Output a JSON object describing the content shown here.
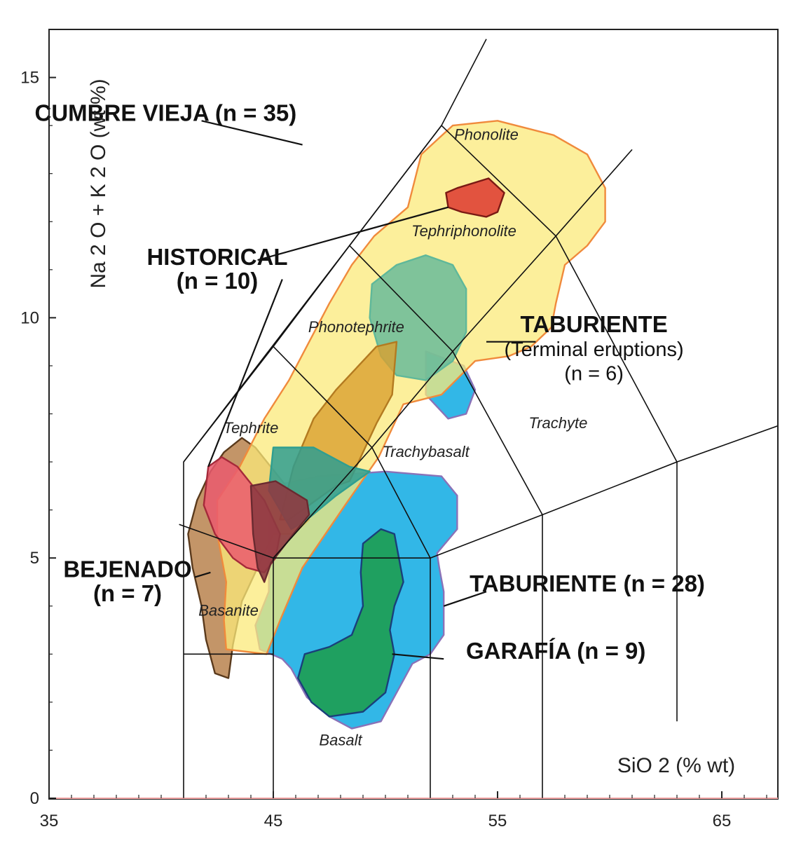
{
  "chart_data": {
    "type": "scatter",
    "subtype": "TAS classification diagram with compositional fields",
    "xlabel": "SiO 2  (% wt)",
    "ylabel": "Na 2 O + K 2 O  (wt %)",
    "xlim": [
      35,
      67.5
    ],
    "ylim": [
      0,
      16
    ],
    "x_ticks": [
      35,
      45,
      55,
      65
    ],
    "y_ticks": [
      0,
      5,
      10,
      15
    ],
    "grid": false,
    "tas_boundaries": [
      [
        [
          41,
          0
        ],
        [
          41,
          7
        ],
        [
          52.5,
          14
        ],
        [
          54.5,
          15.8
        ]
      ],
      [
        [
          41,
          3
        ],
        [
          45,
          3
        ]
      ],
      [
        [
          45,
          0
        ],
        [
          45,
          5
        ],
        [
          52,
          5
        ],
        [
          52,
          0
        ]
      ],
      [
        [
          52,
          5
        ],
        [
          57,
          5.9
        ],
        [
          57,
          0
        ]
      ],
      [
        [
          57,
          5.9
        ],
        [
          63,
          7
        ],
        [
          63,
          1.6
        ]
      ],
      [
        [
          63,
          7
        ],
        [
          69,
          8
        ]
      ],
      [
        [
          45,
          5
        ],
        [
          49.4,
          7.3
        ],
        [
          52,
          5
        ]
      ],
      [
        [
          45,
          5
        ],
        [
          40.8,
          5.7
        ]
      ],
      [
        [
          49.4,
          7.3
        ],
        [
          53,
          9.3
        ],
        [
          57,
          5.9
        ]
      ],
      [
        [
          53,
          9.3
        ],
        [
          57.6,
          11.7
        ],
        [
          63,
          7
        ]
      ],
      [
        [
          57.6,
          11.7
        ],
        [
          61,
          13.5
        ]
      ],
      [
        [
          41,
          7
        ],
        [
          45,
          9.4
        ],
        [
          49.4,
          7.3
        ]
      ],
      [
        [
          45,
          9.4
        ],
        [
          48.4,
          11.5
        ],
        [
          53,
          9.3
        ]
      ],
      [
        [
          48.4,
          11.5
        ],
        [
          52.5,
          14
        ],
        [
          57.6,
          11.7
        ]
      ]
    ],
    "field_labels": [
      {
        "name": "Phonolite",
        "x": 54.5,
        "y": 13.7
      },
      {
        "name": "Tephriphonolite",
        "x": 53.5,
        "y": 11.7
      },
      {
        "name": "Phonotephrite",
        "x": 48.7,
        "y": 9.7
      },
      {
        "name": "Tephrite",
        "x": 44,
        "y": 7.6
      },
      {
        "name": "Trachybasalt",
        "x": 51.8,
        "y": 7.1
      },
      {
        "name": "Trachyte",
        "x": 57.7,
        "y": 7.7
      },
      {
        "name": "Basanite",
        "x": 43,
        "y": 3.8
      },
      {
        "name": "Basalt",
        "x": 48,
        "y": 1.1
      }
    ],
    "series": [
      {
        "name": "TABURIENTE (Terminal eruptions) (n = 6)",
        "label": "TABURIENTE",
        "sublabel": "(Terminal eruptions)",
        "count": "(n = 6)",
        "color": "#27b3e6",
        "outline": "#8a72b8",
        "opacity": 0.95,
        "polygon": [
          [
            51.8,
            9.3
          ],
          [
            53.5,
            9
          ],
          [
            54,
            8.5
          ],
          [
            53.6,
            8
          ],
          [
            52.8,
            7.9
          ],
          [
            51.8,
            8.4
          ]
        ]
      },
      {
        "name": "TABURIENTE (n = 28)",
        "label": "TABURIENTE (n = 28)",
        "color": "#27b3e6",
        "outline": "#8a72b8",
        "opacity": 0.95,
        "polygon": [
          [
            45,
            6.5
          ],
          [
            47,
            6.7
          ],
          [
            50,
            6.8
          ],
          [
            52.5,
            6.7
          ],
          [
            53.2,
            6.3
          ],
          [
            53.2,
            5.6
          ],
          [
            52.3,
            5.1
          ],
          [
            52.4,
            4.8
          ],
          [
            52.6,
            4.3
          ],
          [
            52.6,
            3.4
          ],
          [
            52,
            3
          ],
          [
            51.2,
            2.8
          ],
          [
            50.5,
            2.2
          ],
          [
            49.8,
            1.6
          ],
          [
            48.5,
            1.45
          ],
          [
            47.5,
            1.7
          ],
          [
            46.5,
            2.1
          ],
          [
            45.8,
            2.7
          ],
          [
            45.4,
            2.9
          ],
          [
            44.4,
            3.1
          ],
          [
            44.2,
            3.6
          ],
          [
            44.8,
            4.3
          ],
          [
            44.8,
            5.6
          ]
        ]
      },
      {
        "name": "GARAFÍA (n = 9)",
        "label": "GARAFÍA (n = 9)",
        "color": "#1fa060",
        "outline": "#1a3f7a",
        "opacity": 1,
        "polygon": [
          [
            49,
            5.3
          ],
          [
            49.8,
            5.6
          ],
          [
            50.4,
            5.5
          ],
          [
            50.6,
            5
          ],
          [
            50.8,
            4.5
          ],
          [
            50.4,
            4
          ],
          [
            50.2,
            3.5
          ],
          [
            50.4,
            3
          ],
          [
            50,
            2.2
          ],
          [
            49,
            1.8
          ],
          [
            47.5,
            1.7
          ],
          [
            46.7,
            2
          ],
          [
            46.1,
            2.5
          ],
          [
            46.4,
            3
          ],
          [
            47.5,
            3.15
          ],
          [
            48.5,
            3.4
          ],
          [
            49,
            4
          ],
          [
            48.9,
            4.7
          ]
        ]
      },
      {
        "name": "BEJENADO (n = 7)",
        "label": "BEJENADO",
        "count": "(n = 7)",
        "color": "#b9824d",
        "outline": "#5a3a1c",
        "opacity": 0.85,
        "polygon": [
          [
            42.8,
            7.2
          ],
          [
            43.6,
            7.5
          ],
          [
            44.2,
            7.3
          ],
          [
            45.4,
            6.6
          ],
          [
            46.6,
            5.8
          ],
          [
            45.9,
            5.5
          ],
          [
            45,
            5.5
          ],
          [
            44.3,
            4.8
          ],
          [
            43.6,
            4.1
          ],
          [
            43.2,
            3.2
          ],
          [
            43,
            2.5
          ],
          [
            42.4,
            2.6
          ],
          [
            42,
            3.3
          ],
          [
            41.8,
            4
          ],
          [
            41.4,
            4.8
          ],
          [
            41.2,
            5.5
          ],
          [
            41.6,
            6.2
          ],
          [
            42.2,
            6.8
          ]
        ]
      },
      {
        "name": "CUMBRE VIEJA (n = 35)",
        "label": "CUMBRE VIEJA (n = 35)",
        "color": "#fbe97a",
        "outline": "#f08a3c",
        "opacity": 0.75,
        "polygon": [
          [
            55,
            14.1
          ],
          [
            57.5,
            13.8
          ],
          [
            59,
            13.4
          ],
          [
            59.8,
            12.7
          ],
          [
            59.8,
            12
          ],
          [
            59,
            11.5
          ],
          [
            58,
            11.1
          ],
          [
            57.6,
            10.3
          ],
          [
            57.4,
            9.8
          ],
          [
            56.5,
            9.4
          ],
          [
            55.5,
            9.2
          ],
          [
            54,
            9.1
          ],
          [
            52.5,
            8.4
          ],
          [
            50.8,
            8.2
          ],
          [
            49.7,
            7.1
          ],
          [
            48.2,
            6.1
          ],
          [
            46.3,
            4.8
          ],
          [
            45.3,
            3.7
          ],
          [
            44.7,
            3
          ],
          [
            42.9,
            3.1
          ],
          [
            42.8,
            3.7
          ],
          [
            42.9,
            4.5
          ],
          [
            42.5,
            5.5
          ],
          [
            42.5,
            6.2
          ],
          [
            43.5,
            6.9
          ],
          [
            44.6,
            7.9
          ],
          [
            45.7,
            8.7
          ],
          [
            47.5,
            10.3
          ],
          [
            48.5,
            11.1
          ],
          [
            49.5,
            11.7
          ],
          [
            51,
            12.3
          ],
          [
            51.6,
            13.4
          ],
          [
            53,
            14
          ]
        ]
      },
      {
        "name": "Phonotephrite field (green)",
        "color": "#5fb89a",
        "outline": "#5fb89a",
        "opacity": 0.8,
        "polygon": [
          [
            49.4,
            10.7
          ],
          [
            50.5,
            11.1
          ],
          [
            51.8,
            11.3
          ],
          [
            53,
            11.1
          ],
          [
            53.6,
            10.6
          ],
          [
            53.6,
            9.7
          ],
          [
            53,
            9.1
          ],
          [
            51.8,
            8.7
          ],
          [
            50.5,
            8.8
          ],
          [
            49.8,
            9.2
          ],
          [
            49.3,
            10
          ]
        ]
      },
      {
        "name": "Ocre body overlay",
        "color": "#d9a030",
        "outline": "#b37a20",
        "opacity": 0.8,
        "polygon": [
          [
            49.6,
            9.4
          ],
          [
            50.5,
            9.5
          ],
          [
            50.3,
            8.4
          ],
          [
            49.6,
            7.8
          ],
          [
            48.9,
            7.1
          ],
          [
            48.4,
            6.6
          ],
          [
            47.8,
            6.5
          ],
          [
            46.9,
            6.2
          ],
          [
            45.7,
            5.8
          ],
          [
            45.3,
            5.8
          ],
          [
            45.9,
            6.9
          ],
          [
            46.8,
            7.9
          ],
          [
            47.8,
            8.5
          ]
        ]
      },
      {
        "name": "Dark teal overlay",
        "color": "#2f9e90",
        "outline": "#2f9e90",
        "opacity": 0.85,
        "polygon": [
          [
            45,
            7.3
          ],
          [
            46.8,
            7.3
          ],
          [
            48.4,
            6.9
          ],
          [
            49.3,
            6.8
          ],
          [
            47.8,
            6.3
          ],
          [
            46.5,
            5.8
          ],
          [
            45.8,
            5.6
          ],
          [
            44.8,
            6.4
          ]
        ]
      },
      {
        "name": "HISTORICAL (n = 10)",
        "label": "HISTORICAL",
        "count": "(n = 10)",
        "color": "#ea5a6e",
        "outline": "#a52a3a",
        "opacity": 0.85,
        "polygon": [
          [
            42.1,
            6.9
          ],
          [
            42.7,
            7.1
          ],
          [
            43.4,
            6.9
          ],
          [
            44.6,
            6.2
          ],
          [
            45.3,
            5.5
          ],
          [
            45.1,
            5
          ],
          [
            44.6,
            4.7
          ],
          [
            43.8,
            4.8
          ],
          [
            43.2,
            5
          ],
          [
            42.4,
            5.5
          ],
          [
            41.9,
            6.1
          ]
        ]
      },
      {
        "name": "Maroon overlay",
        "color": "#8e3a41",
        "outline": "#6a2a30",
        "opacity": 0.9,
        "polygon": [
          [
            44,
            6.5
          ],
          [
            45.1,
            6.6
          ],
          [
            46.5,
            6.2
          ],
          [
            46.6,
            5.9
          ],
          [
            45.9,
            5.5
          ],
          [
            44.9,
            4.9
          ],
          [
            44.6,
            4.5
          ],
          [
            44.3,
            4.8
          ],
          [
            44.1,
            5.5
          ]
        ]
      },
      {
        "name": "Historical phonolite cluster",
        "color": "#e04a3a",
        "outline": "#7a1a14",
        "opacity": 0.95,
        "polygon": [
          [
            53.2,
            12.7
          ],
          [
            54.6,
            12.9
          ],
          [
            55.3,
            12.6
          ],
          [
            55,
            12.2
          ],
          [
            54.5,
            12.1
          ],
          [
            53.4,
            12.2
          ],
          [
            52.8,
            12.3
          ],
          [
            52.7,
            12.6
          ]
        ]
      }
    ],
    "annotations": [
      {
        "text": "CUMBRE VIEJA (n = 35)",
        "style": "group",
        "x": 40.2,
        "y": 14.1,
        "leader": [
          [
            41.8,
            14.1
          ],
          [
            46.3,
            13.6
          ]
        ]
      },
      {
        "text": "HISTORICAL",
        "style": "group",
        "x": 42.5,
        "y": 11.1
      },
      {
        "text": "(n = 10)",
        "style": "group",
        "x": 42.5,
        "y": 10.6,
        "leader": [
          [
            44.3,
            11.2
          ],
          [
            52.8,
            12.3
          ]
        ],
        "leader2": [
          [
            45.4,
            10.8
          ],
          [
            42.1,
            6.9
          ]
        ]
      },
      {
        "text": "TABURIENTE",
        "style": "group",
        "x": 59.3,
        "y": 9.7,
        "leader": [
          [
            56.7,
            9.5
          ],
          [
            54.5,
            9.5
          ]
        ]
      },
      {
        "text": "(Terminal eruptions)",
        "style": "sub",
        "x": 59.3,
        "y": 9.2
      },
      {
        "text": "(n = 6)",
        "style": "sub",
        "x": 59.3,
        "y": 8.7
      },
      {
        "text": "BEJENADO",
        "style": "group",
        "x": 38.5,
        "y": 4.6,
        "leader": [
          [
            41.5,
            4.6
          ],
          [
            42.2,
            4.7
          ]
        ]
      },
      {
        "text": "(n = 7)",
        "style": "group",
        "x": 38.5,
        "y": 4.1
      },
      {
        "text": "TABURIENTE (n = 28)",
        "style": "group",
        "x": 59,
        "y": 4.3,
        "leader": [
          [
            54.5,
            4.3
          ],
          [
            52.6,
            4
          ]
        ]
      },
      {
        "text": "GARAFÍA (n = 9)",
        "style": "group",
        "x": 57.6,
        "y": 2.9,
        "leader": [
          [
            52.6,
            2.9
          ],
          [
            50.3,
            3
          ]
        ]
      }
    ]
  }
}
